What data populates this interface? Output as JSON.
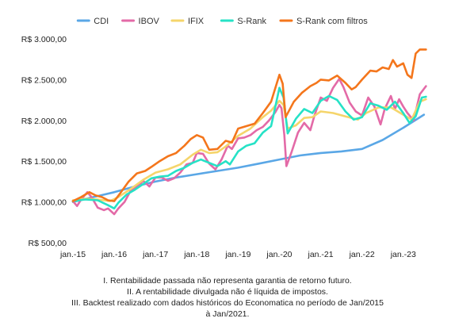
{
  "chart_data": {
    "type": "line",
    "xlabel": "",
    "ylabel": "",
    "x_ticks": [
      "jan.-15",
      "jan.-16",
      "jan.-17",
      "jan.-18",
      "jan.-19",
      "jan.-20",
      "jan.-21",
      "jan.-22",
      "jan.-23"
    ],
    "y_ticks": [
      "R$ 500,00",
      "R$ 1.000,00",
      "R$ 1.500,00",
      "R$ 2.000,00",
      "R$ 2.500,00",
      "R$ 3.000,00"
    ],
    "ylim": [
      500,
      3000
    ],
    "xlim": [
      2015.0,
      2023.6
    ],
    "legend_position": "top",
    "grid": false,
    "series": [
      {
        "name": "CDI",
        "color": "#5aa7e6",
        "points": [
          [
            2015.0,
            1000
          ],
          [
            2015.5,
            1060
          ],
          [
            2016.0,
            1120
          ],
          [
            2016.5,
            1190
          ],
          [
            2017.0,
            1250
          ],
          [
            2017.5,
            1300
          ],
          [
            2018.0,
            1340
          ],
          [
            2018.5,
            1380
          ],
          [
            2019.0,
            1420
          ],
          [
            2019.5,
            1470
          ],
          [
            2020.0,
            1520
          ],
          [
            2020.5,
            1570
          ],
          [
            2021.0,
            1600
          ],
          [
            2021.5,
            1620
          ],
          [
            2022.0,
            1650
          ],
          [
            2022.5,
            1760
          ],
          [
            2023.0,
            1910
          ],
          [
            2023.5,
            2070
          ]
        ]
      },
      {
        "name": "IBOV",
        "color": "#e36aa7",
        "points": [
          [
            2015.0,
            1010
          ],
          [
            2015.1,
            950
          ],
          [
            2015.2,
            1030
          ],
          [
            2015.35,
            1120
          ],
          [
            2015.45,
            1060
          ],
          [
            2015.6,
            930
          ],
          [
            2015.75,
            900
          ],
          [
            2015.85,
            920
          ],
          [
            2016.0,
            850
          ],
          [
            2016.1,
            920
          ],
          [
            2016.25,
            1000
          ],
          [
            2016.4,
            1140
          ],
          [
            2016.55,
            1180
          ],
          [
            2016.7,
            1260
          ],
          [
            2016.85,
            1190
          ],
          [
            2017.0,
            1300
          ],
          [
            2017.15,
            1300
          ],
          [
            2017.3,
            1260
          ],
          [
            2017.45,
            1290
          ],
          [
            2017.6,
            1360
          ],
          [
            2017.75,
            1460
          ],
          [
            2017.9,
            1480
          ],
          [
            2018.0,
            1600
          ],
          [
            2018.15,
            1590
          ],
          [
            2018.3,
            1470
          ],
          [
            2018.45,
            1400
          ],
          [
            2018.6,
            1520
          ],
          [
            2018.75,
            1690
          ],
          [
            2018.85,
            1650
          ],
          [
            2019.0,
            1780
          ],
          [
            2019.15,
            1790
          ],
          [
            2019.3,
            1820
          ],
          [
            2019.45,
            1880
          ],
          [
            2019.6,
            1920
          ],
          [
            2019.75,
            2000
          ],
          [
            2019.9,
            2100
          ],
          [
            2020.0,
            2190
          ],
          [
            2020.05,
            2150
          ],
          [
            2020.12,
            1820
          ],
          [
            2020.17,
            1440
          ],
          [
            2020.3,
            1620
          ],
          [
            2020.45,
            1850
          ],
          [
            2020.6,
            1970
          ],
          [
            2020.75,
            1880
          ],
          [
            2020.85,
            2060
          ],
          [
            2021.0,
            2280
          ],
          [
            2021.15,
            2240
          ],
          [
            2021.3,
            2400
          ],
          [
            2021.45,
            2510
          ],
          [
            2021.55,
            2410
          ],
          [
            2021.7,
            2220
          ],
          [
            2021.85,
            2110
          ],
          [
            2022.0,
            2060
          ],
          [
            2022.15,
            2280
          ],
          [
            2022.3,
            2170
          ],
          [
            2022.45,
            1950
          ],
          [
            2022.55,
            2140
          ],
          [
            2022.7,
            2300
          ],
          [
            2022.8,
            2140
          ],
          [
            2022.9,
            2260
          ],
          [
            2023.0,
            2170
          ],
          [
            2023.1,
            2090
          ],
          [
            2023.25,
            2000
          ],
          [
            2023.4,
            2320
          ],
          [
            2023.55,
            2420
          ]
        ]
      },
      {
        "name": "IFIX",
        "color": "#f5d56b",
        "points": [
          [
            2015.0,
            1020
          ],
          [
            2015.3,
            1040
          ],
          [
            2015.6,
            1030
          ],
          [
            2015.9,
            1010
          ],
          [
            2016.1,
            1060
          ],
          [
            2016.4,
            1160
          ],
          [
            2016.7,
            1270
          ],
          [
            2017.0,
            1360
          ],
          [
            2017.3,
            1400
          ],
          [
            2017.6,
            1460
          ],
          [
            2017.9,
            1580
          ],
          [
            2018.1,
            1640
          ],
          [
            2018.3,
            1600
          ],
          [
            2018.5,
            1610
          ],
          [
            2018.7,
            1680
          ],
          [
            2019.0,
            1810
          ],
          [
            2019.3,
            1900
          ],
          [
            2019.6,
            2040
          ],
          [
            2019.8,
            2120
          ],
          [
            2020.0,
            2240
          ],
          [
            2020.1,
            2190
          ],
          [
            2020.2,
            1900
          ],
          [
            2020.4,
            1940
          ],
          [
            2020.6,
            2030
          ],
          [
            2020.8,
            2040
          ],
          [
            2021.0,
            2110
          ],
          [
            2021.3,
            2090
          ],
          [
            2021.6,
            2050
          ],
          [
            2021.9,
            2010
          ],
          [
            2022.1,
            2090
          ],
          [
            2022.4,
            2160
          ],
          [
            2022.7,
            2160
          ],
          [
            2023.0,
            2070
          ],
          [
            2023.2,
            2010
          ],
          [
            2023.4,
            2230
          ],
          [
            2023.55,
            2260
          ]
        ]
      },
      {
        "name": "S-Rank",
        "color": "#26e2c6",
        "points": [
          [
            2015.0,
            1010
          ],
          [
            2015.3,
            1030
          ],
          [
            2015.6,
            1020
          ],
          [
            2015.85,
            960
          ],
          [
            2016.0,
            920
          ],
          [
            2016.1,
            990
          ],
          [
            2016.3,
            1090
          ],
          [
            2016.5,
            1150
          ],
          [
            2016.7,
            1220
          ],
          [
            2016.9,
            1290
          ],
          [
            2017.1,
            1310
          ],
          [
            2017.3,
            1320
          ],
          [
            2017.5,
            1380
          ],
          [
            2017.7,
            1420
          ],
          [
            2017.9,
            1480
          ],
          [
            2018.1,
            1520
          ],
          [
            2018.3,
            1480
          ],
          [
            2018.5,
            1440
          ],
          [
            2018.7,
            1500
          ],
          [
            2018.8,
            1460
          ],
          [
            2019.0,
            1620
          ],
          [
            2019.2,
            1690
          ],
          [
            2019.4,
            1720
          ],
          [
            2019.6,
            1850
          ],
          [
            2019.8,
            1930
          ],
          [
            2020.0,
            2400
          ],
          [
            2020.1,
            2280
          ],
          [
            2020.2,
            1840
          ],
          [
            2020.4,
            2020
          ],
          [
            2020.6,
            2140
          ],
          [
            2020.8,
            2090
          ],
          [
            2021.0,
            2240
          ],
          [
            2021.2,
            2300
          ],
          [
            2021.4,
            2250
          ],
          [
            2021.6,
            2110
          ],
          [
            2021.8,
            2010
          ],
          [
            2022.0,
            2040
          ],
          [
            2022.2,
            2210
          ],
          [
            2022.4,
            2180
          ],
          [
            2022.6,
            2130
          ],
          [
            2022.8,
            2230
          ],
          [
            2023.0,
            2090
          ],
          [
            2023.15,
            1970
          ],
          [
            2023.3,
            2050
          ],
          [
            2023.45,
            2280
          ],
          [
            2023.55,
            2290
          ]
        ]
      },
      {
        "name": "S-Rank com filtros",
        "color": "#f4761c",
        "points": [
          [
            2015.0,
            1010
          ],
          [
            2015.2,
            1060
          ],
          [
            2015.4,
            1120
          ],
          [
            2015.55,
            1080
          ],
          [
            2015.7,
            1060
          ],
          [
            2015.85,
            1020
          ],
          [
            2016.0,
            1010
          ],
          [
            2016.15,
            1110
          ],
          [
            2016.35,
            1250
          ],
          [
            2016.55,
            1350
          ],
          [
            2016.75,
            1380
          ],
          [
            2016.9,
            1430
          ],
          [
            2017.1,
            1500
          ],
          [
            2017.3,
            1560
          ],
          [
            2017.5,
            1600
          ],
          [
            2017.7,
            1690
          ],
          [
            2017.85,
            1770
          ],
          [
            2018.0,
            1820
          ],
          [
            2018.15,
            1790
          ],
          [
            2018.3,
            1640
          ],
          [
            2018.5,
            1650
          ],
          [
            2018.7,
            1750
          ],
          [
            2018.85,
            1730
          ],
          [
            2019.0,
            1900
          ],
          [
            2019.2,
            1930
          ],
          [
            2019.4,
            1960
          ],
          [
            2019.6,
            2090
          ],
          [
            2019.8,
            2230
          ],
          [
            2020.0,
            2560
          ],
          [
            2020.08,
            2450
          ],
          [
            2020.15,
            2040
          ],
          [
            2020.35,
            2230
          ],
          [
            2020.55,
            2340
          ],
          [
            2020.75,
            2420
          ],
          [
            2020.9,
            2460
          ],
          [
            2021.0,
            2500
          ],
          [
            2021.2,
            2490
          ],
          [
            2021.4,
            2550
          ],
          [
            2021.6,
            2460
          ],
          [
            2021.75,
            2380
          ],
          [
            2021.85,
            2410
          ],
          [
            2022.0,
            2500
          ],
          [
            2022.2,
            2610
          ],
          [
            2022.35,
            2600
          ],
          [
            2022.5,
            2650
          ],
          [
            2022.65,
            2630
          ],
          [
            2022.75,
            2740
          ],
          [
            2022.85,
            2660
          ],
          [
            2023.0,
            2700
          ],
          [
            2023.1,
            2560
          ],
          [
            2023.2,
            2520
          ],
          [
            2023.3,
            2820
          ],
          [
            2023.4,
            2870
          ],
          [
            2023.55,
            2870
          ]
        ]
      }
    ]
  },
  "footnotes": [
    "I. Rentabilidade passada não representa garantia de retorno futuro.",
    "II. A rentabilidade divulgada não é líquida de impostos.",
    "III. Backtest realizado com dados históricos do Economatica no período de Jan/2015",
    "à Jan/2021."
  ]
}
